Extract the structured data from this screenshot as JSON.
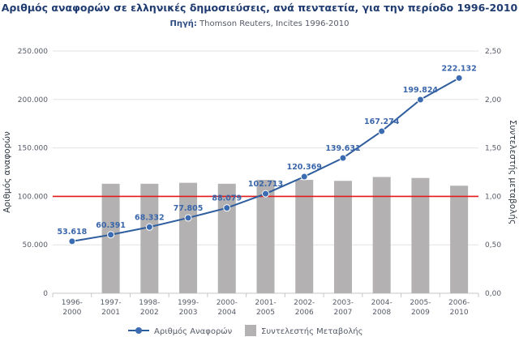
{
  "header": {
    "title": "Αριθμός αναφορών σε ελληνικές δημοσιεύσεις, ανά πενταετία, για την περίοδο 1996-2010",
    "source_label": "Πηγή:",
    "source_value": "Thomson Reuters, Incites 1996-2010"
  },
  "colors": {
    "line": "#2f5e9e",
    "marker": "#3b6bb0",
    "bar": "#b3b1b1",
    "reference": "#e3191b",
    "grid": "#e2e2e2"
  },
  "chart_data": {
    "type": "bar+line",
    "categories": [
      [
        "1996-",
        "2000"
      ],
      [
        "1997-",
        "2001"
      ],
      [
        "1998-",
        "2002"
      ],
      [
        "1999-",
        "2003"
      ],
      [
        "2000-",
        "2004"
      ],
      [
        "2001-",
        "2005"
      ],
      [
        "2002-",
        "2006"
      ],
      [
        "2003-",
        "2007"
      ],
      [
        "2004-",
        "2008"
      ],
      [
        "2005-",
        "2009"
      ],
      [
        "2006-",
        "2010"
      ]
    ],
    "series": [
      {
        "name": "Αριθμός Αναφορών",
        "type": "line",
        "axis": "left",
        "values": [
          53618,
          60391,
          68332,
          77805,
          88079,
          102713,
          120369,
          139631,
          167274,
          199824,
          222132
        ],
        "labels": [
          "53.618",
          "60.391",
          "68.332",
          "77.805",
          "88.079",
          "102.713",
          "120.369",
          "139.631",
          "167.274",
          "199.824",
          "222.132"
        ]
      },
      {
        "name": "Συντελεστής Μεταβολής",
        "type": "bar",
        "axis": "right",
        "values": [
          null,
          1.13,
          1.13,
          1.14,
          1.13,
          1.17,
          1.17,
          1.16,
          1.2,
          1.19,
          1.11
        ]
      }
    ],
    "reference_line": {
      "axis": "right",
      "value": 1.0
    },
    "y_left": {
      "label": "Αριθμός αναφορών",
      "lim": [
        0,
        250000
      ],
      "ticks": [
        "0",
        "50.000",
        "100.000",
        "150.000",
        "200.000",
        "250.000"
      ]
    },
    "y_right": {
      "label": "Συντελεστής μεταβολής",
      "lim": [
        0,
        2.5
      ],
      "ticks": [
        "0,00",
        "0,50",
        "1,00",
        "1,50",
        "2,00",
        "2,50"
      ]
    },
    "legend": {
      "position": "bottom",
      "items": [
        "Αριθμός Αναφορών",
        "Συντελεστής Μεταβολής"
      ]
    },
    "grid": true
  }
}
